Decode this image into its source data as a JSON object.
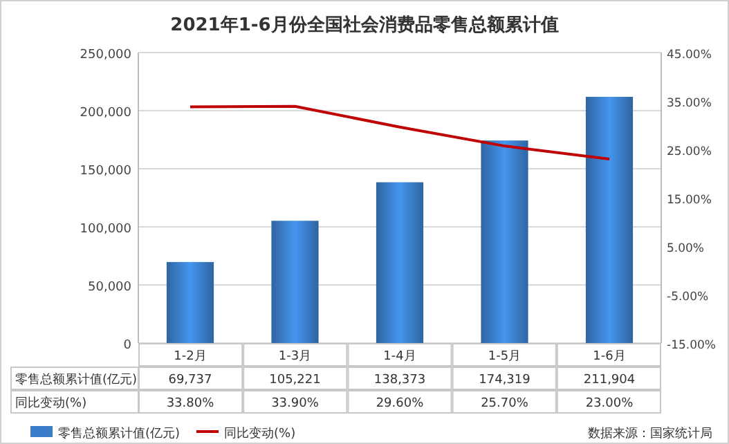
{
  "chart_data": {
    "type": "bar",
    "title": "2021年1-6月份全国社会消费品零售总额累计值",
    "categories": [
      "1-2月",
      "1-3月",
      "1-4月",
      "1-5月",
      "1-6月"
    ],
    "series": [
      {
        "name": "零售总额累计值(亿元)",
        "color": "#3a7dc8",
        "values": [
          69737,
          105221,
          138373,
          174319,
          211904
        ],
        "value_labels": [
          "69,737",
          "105,221",
          "138,373",
          "174,319",
          "211,904"
        ]
      },
      {
        "name": "同比变动(%)",
        "type": "line",
        "axis": "y2",
        "color": "#c00000",
        "values": [
          33.8,
          33.9,
          29.6,
          25.7,
          23.0
        ],
        "value_labels": [
          "33.80%",
          "33.90%",
          "29.60%",
          "25.70%",
          "23.00%"
        ]
      }
    ],
    "ylim": [
      0,
      250000
    ],
    "yticks": [
      0,
      {
        "value": 50000,
        "label": "50,000"
      },
      {
        "value": 100000,
        "label": "100,000"
      },
      {
        "value": 150000,
        "label": "150,000"
      },
      {
        "value": 200000,
        "label": "200,000"
      },
      {
        "value": 250000,
        "label": "250,000"
      }
    ],
    "y2lim": [
      -15,
      45
    ],
    "y2ticks": [
      {
        "value": -15,
        "label": "-15.00%"
      },
      {
        "value": -5,
        "label": "-5.00%"
      },
      {
        "value": 5,
        "label": "5.00%"
      },
      {
        "value": 15,
        "label": "15.00%"
      },
      {
        "value": 25,
        "label": "25.00%"
      },
      {
        "value": 35,
        "label": "35.00%"
      },
      {
        "value": 45,
        "label": "45.00%"
      }
    ],
    "grid": "y",
    "legend": "bottom",
    "marker": "none",
    "line_style": "solid",
    "annotations": [
      "数据来源：国家统计局"
    ]
  }
}
